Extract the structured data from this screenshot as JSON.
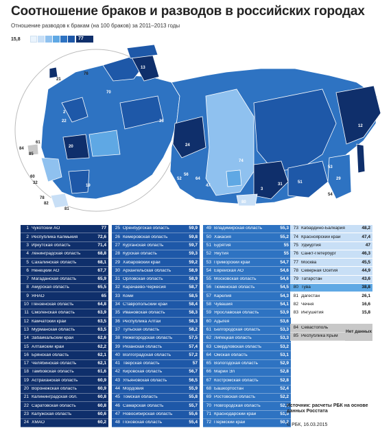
{
  "title": "Соотношение браков и разводов в российских городах",
  "subtitle": "Отношение разводов к бракам (на 100 браков) за 2011–2013 годы",
  "legend": {
    "min": "15,8",
    "max": "77",
    "colors": [
      "#eaf4fd",
      "#c8dff6",
      "#8fc1ef",
      "#5fa8e4",
      "#2e73c2",
      "#1e58a8"
    ],
    "max_color": "#0f2f6b"
  },
  "map_labels": [
    "13",
    "76",
    "21",
    "12",
    "24",
    "33",
    "74",
    "3",
    "31",
    "51",
    "29",
    "53",
    "54",
    "80",
    "84",
    "85",
    "61",
    "60",
    "32",
    "78",
    "82",
    "81",
    "19",
    "56",
    "2",
    "20",
    "22",
    "47",
    "52",
    "64",
    "70"
  ],
  "columns": [
    {
      "rows": [
        {
          "rank": "1",
          "name": "Чукотский АО",
          "value": "77"
        },
        {
          "rank": "2",
          "name": "Республика Калмыкия",
          "value": "72,6"
        },
        {
          "rank": "3",
          "name": "Иркутская область",
          "value": "71,4"
        },
        {
          "rank": "4",
          "name": "Ленинградская область",
          "value": "68,8"
        },
        {
          "rank": "5",
          "name": "Сахалинская область",
          "value": "68,1"
        },
        {
          "rank": "6",
          "name": "Ненецкий АО",
          "value": "67,7"
        },
        {
          "rank": "7",
          "name": "Магаданская область",
          "value": "65,9"
        },
        {
          "rank": "8",
          "name": "Амурская область",
          "value": "65,5"
        },
        {
          "rank": "9",
          "name": "ЯНАО",
          "value": "65"
        },
        {
          "rank": "10",
          "name": "Пензенская область",
          "value": "64,8"
        },
        {
          "rank": "11",
          "name": "Смоленская область",
          "value": "63,9"
        },
        {
          "rank": "12",
          "name": "Камчатский край",
          "value": "63,5"
        },
        {
          "rank": "13",
          "name": "Мурманская область",
          "value": "63,5"
        },
        {
          "rank": "14",
          "name": "Забайкальский край",
          "value": "62,6"
        },
        {
          "rank": "15",
          "name": "Алтайский край",
          "value": "62,2"
        },
        {
          "rank": "16",
          "name": "Брянская область",
          "value": "62,1"
        },
        {
          "rank": "17",
          "name": "Челябинская область",
          "value": "62,1"
        },
        {
          "rank": "18",
          "name": "Тамбовская область",
          "value": "61,6"
        },
        {
          "rank": "19",
          "name": "Астраханская область",
          "value": "60,9"
        },
        {
          "rank": "20",
          "name": "Воронежская область",
          "value": "60,9"
        },
        {
          "rank": "21",
          "name": "Калининградская обл.",
          "value": "60,8"
        },
        {
          "rank": "22",
          "name": "Саратовская область",
          "value": "60,8"
        },
        {
          "rank": "23",
          "name": "Калужская область",
          "value": "60,6"
        },
        {
          "rank": "24",
          "name": "ХМАО",
          "value": "60,2"
        }
      ]
    },
    {
      "rows": [
        {
          "rank": "25",
          "name": "Оренбургская область",
          "value": "59,9"
        },
        {
          "rank": "26",
          "name": "Кемеровская область",
          "value": "59,8"
        },
        {
          "rank": "27",
          "name": "Курганская область",
          "value": "59,7"
        },
        {
          "rank": "28",
          "name": "Курская область",
          "value": "59,3"
        },
        {
          "rank": "29",
          "name": "Хабаровский край",
          "value": "59,2"
        },
        {
          "rank": "30",
          "name": "Архангельская область",
          "value": "58,9"
        },
        {
          "rank": "31",
          "name": "Орловская область",
          "value": "58,9"
        },
        {
          "rank": "32",
          "name": "Карачаево-Черкесия",
          "value": "58,7"
        },
        {
          "rank": "33",
          "name": "Коми",
          "value": "58,5"
        },
        {
          "rank": "34",
          "name": "Ставропольский край",
          "value": "58,4"
        },
        {
          "rank": "35",
          "name": "Ивановская область",
          "value": "58,3"
        },
        {
          "rank": "36",
          "name": "Республика Алтай",
          "value": "58,3"
        },
        {
          "rank": "37",
          "name": "Тульская область",
          "value": "58,2"
        },
        {
          "rank": "38",
          "name": "Нижегородская область",
          "value": "57,5"
        },
        {
          "rank": "39",
          "name": "Рязанская область",
          "value": "57,4"
        },
        {
          "rank": "40",
          "name": "Волгоградская область",
          "value": "57,2"
        },
        {
          "rank": "41",
          "name": "Тверская область",
          "value": "57"
        },
        {
          "rank": "42",
          "name": "Кировская область",
          "value": "56,7"
        },
        {
          "rank": "43",
          "name": "Ульяновская область",
          "value": "56,5"
        },
        {
          "rank": "44",
          "name": "Мордовия",
          "value": "55,9"
        },
        {
          "rank": "45",
          "name": "Томская область",
          "value": "55,8"
        },
        {
          "rank": "46",
          "name": "Самарская область",
          "value": "55,7"
        },
        {
          "rank": "47",
          "name": "Новосибирская область",
          "value": "55,6"
        },
        {
          "rank": "48",
          "name": "Псковская область",
          "value": "55,4"
        }
      ]
    },
    {
      "rows": [
        {
          "rank": "49",
          "name": "Владимирская область",
          "value": "55,3"
        },
        {
          "rank": "50",
          "name": "Хакасия",
          "value": "55,2"
        },
        {
          "rank": "51",
          "name": "Бурятия",
          "value": "55"
        },
        {
          "rank": "52",
          "name": "Якутия",
          "value": "55"
        },
        {
          "rank": "53",
          "name": "Приморский край",
          "value": "54,7"
        },
        {
          "rank": "54",
          "name": "Еврейская АО",
          "value": "54,6"
        },
        {
          "rank": "55",
          "name": "Московская область",
          "value": "54,6"
        },
        {
          "rank": "56",
          "name": "Тюменская область",
          "value": "54,5"
        },
        {
          "rank": "57",
          "name": "Карелия",
          "value": "54,3"
        },
        {
          "rank": "58",
          "name": "Чувашия",
          "value": "54,1"
        },
        {
          "rank": "59",
          "name": "Ярославская область",
          "value": "53,9"
        },
        {
          "rank": "60",
          "name": "Адыгея",
          "value": "53,6"
        },
        {
          "rank": "61",
          "name": "Белгородская область",
          "value": "53,3"
        },
        {
          "rank": "62",
          "name": "Липецкая область",
          "value": "53,3"
        },
        {
          "rank": "63",
          "name": "Свердловская область",
          "value": "53,2"
        },
        {
          "rank": "64",
          "name": "Омская область",
          "value": "53,1"
        },
        {
          "rank": "65",
          "name": "Вологодская область",
          "value": "52,9"
        },
        {
          "rank": "66",
          "name": "Марий Эл",
          "value": "52,8"
        },
        {
          "rank": "67",
          "name": "Костромская область",
          "value": "52,8"
        },
        {
          "rank": "68",
          "name": "Башкортостан",
          "value": "52,4"
        },
        {
          "rank": "69",
          "name": "Ростовская область",
          "value": "52,2"
        },
        {
          "rank": "70",
          "name": "Новгородская область",
          "value": "52,1"
        },
        {
          "rank": "71",
          "name": "Краснодарский край",
          "value": "51,5"
        },
        {
          "rank": "72",
          "name": "Пермский край",
          "value": "50,2"
        }
      ]
    },
    {
      "rows": [
        {
          "rank": "73",
          "name": "Кабардино-Балкария",
          "value": "48,2"
        },
        {
          "rank": "74",
          "name": "Красноярский край",
          "value": "47,4"
        },
        {
          "rank": "75",
          "name": "Удмуртия",
          "value": "47"
        },
        {
          "rank": "76",
          "name": "Санкт-Петербург",
          "value": "46,3"
        },
        {
          "rank": "77",
          "name": "Москва",
          "value": "45,5"
        },
        {
          "rank": "78",
          "name": "Северная Осетия",
          "value": "44,9"
        },
        {
          "rank": "79",
          "name": "Татарстан",
          "value": "43,6"
        },
        {
          "rank": "80",
          "name": "Тува",
          "value": "38,8"
        },
        {
          "rank": "81",
          "name": "Дагестан",
          "value": "26,1"
        },
        {
          "rank": "82",
          "name": "Чечня",
          "value": "16,6"
        },
        {
          "rank": "83",
          "name": "Ингушетия",
          "value": "15,8"
        }
      ],
      "nodata": [
        {
          "rank": "84",
          "name": "Севастополь"
        },
        {
          "rank": "85",
          "name": "Республика Крым"
        }
      ],
      "nodata_label": "Нет данных"
    }
  ],
  "sources": "Источник: расчеты РБК на основе данных Росстата",
  "copyright": "© РБК, 16.03.2015"
}
